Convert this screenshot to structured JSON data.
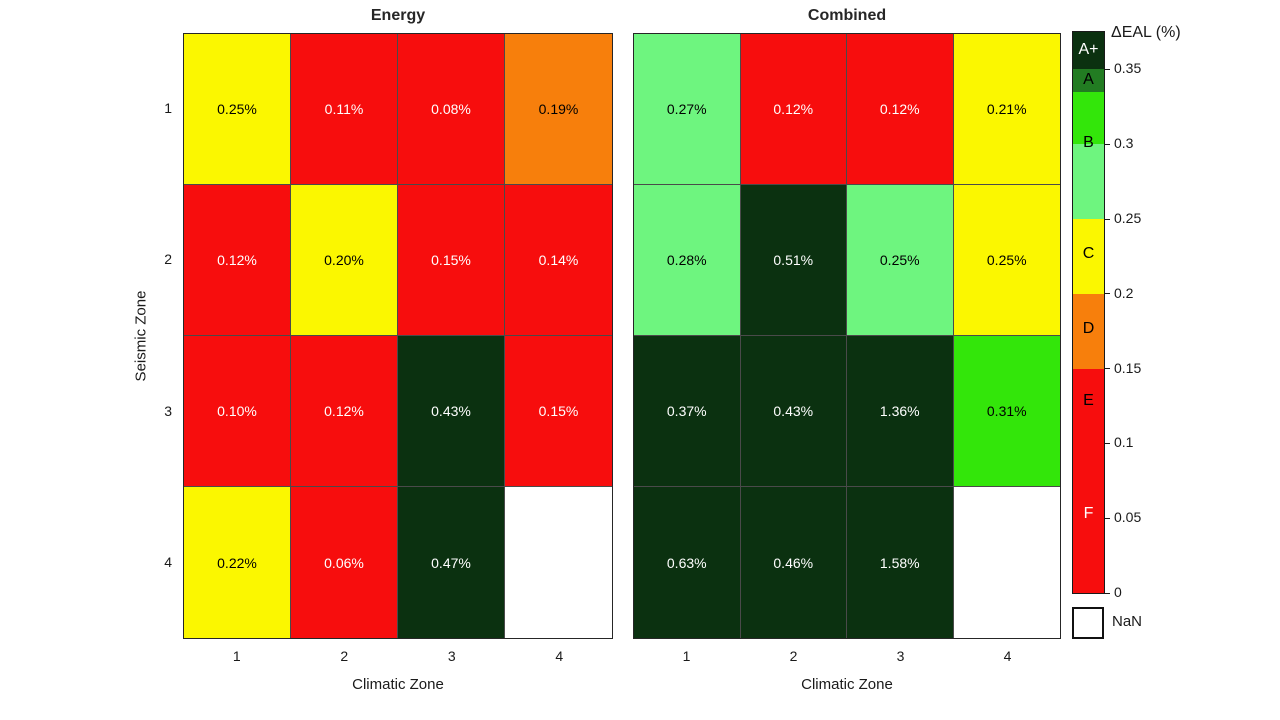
{
  "figure": {
    "background": "#ffffff",
    "ylabel": "Seismic Zone",
    "y_tick_labels": [
      "1",
      "2",
      "3",
      "4"
    ]
  },
  "chart_data": [
    {
      "type": "heatmap",
      "title": "Energy",
      "xlabel": "Climatic Zone",
      "ylabel": "Seismic Zone",
      "x_categories": [
        "1",
        "2",
        "3",
        "4"
      ],
      "y_categories": [
        "1",
        "2",
        "3",
        "4"
      ],
      "value_unit": "% (ΔEAL)",
      "rows": [
        [
          {
            "value": 0.25,
            "label": "0.25%",
            "bg": "#fbf700",
            "fg": "#000000"
          },
          {
            "value": 0.11,
            "label": "0.11%",
            "bg": "#f70d0d",
            "fg": "#ffffff"
          },
          {
            "value": 0.08,
            "label": "0.08%",
            "bg": "#f70d0d",
            "fg": "#ffffff"
          },
          {
            "value": 0.19,
            "label": "0.19%",
            "bg": "#f77f0c",
            "fg": "#000000"
          }
        ],
        [
          {
            "value": 0.12,
            "label": "0.12%",
            "bg": "#f70d0d",
            "fg": "#ffffff"
          },
          {
            "value": 0.2,
            "label": "0.20%",
            "bg": "#fbf700",
            "fg": "#000000"
          },
          {
            "value": 0.15,
            "label": "0.15%",
            "bg": "#f70d0d",
            "fg": "#ffffff"
          },
          {
            "value": 0.14,
            "label": "0.14%",
            "bg": "#f70d0d",
            "fg": "#ffffff"
          }
        ],
        [
          {
            "value": 0.1,
            "label": "0.10%",
            "bg": "#f70d0d",
            "fg": "#ffffff"
          },
          {
            "value": 0.12,
            "label": "0.12%",
            "bg": "#f70d0d",
            "fg": "#ffffff"
          },
          {
            "value": 0.43,
            "label": "0.43%",
            "bg": "#0b3110",
            "fg": "#ffffff"
          },
          {
            "value": 0.15,
            "label": "0.15%",
            "bg": "#f70d0d",
            "fg": "#ffffff"
          }
        ],
        [
          {
            "value": 0.22,
            "label": "0.22%",
            "bg": "#fbf700",
            "fg": "#000000"
          },
          {
            "value": 0.06,
            "label": "0.06%",
            "bg": "#f70d0d",
            "fg": "#ffffff"
          },
          {
            "value": 0.47,
            "label": "0.47%",
            "bg": "#0b3110",
            "fg": "#ffffff"
          },
          {
            "value": null,
            "label": "",
            "bg": "#ffffff",
            "fg": "#000000"
          }
        ]
      ]
    },
    {
      "type": "heatmap",
      "title": "Combined",
      "xlabel": "Climatic Zone",
      "ylabel": "Seismic Zone",
      "x_categories": [
        "1",
        "2",
        "3",
        "4"
      ],
      "y_categories": [
        "1",
        "2",
        "3",
        "4"
      ],
      "value_unit": "% (ΔEAL)",
      "rows": [
        [
          {
            "value": 0.27,
            "label": "0.27%",
            "bg": "#6ef57f",
            "fg": "#000000"
          },
          {
            "value": 0.12,
            "label": "0.12%",
            "bg": "#f70d0d",
            "fg": "#ffffff"
          },
          {
            "value": 0.12,
            "label": "0.12%",
            "bg": "#f70d0d",
            "fg": "#ffffff"
          },
          {
            "value": 0.21,
            "label": "0.21%",
            "bg": "#fbf700",
            "fg": "#000000"
          }
        ],
        [
          {
            "value": 0.28,
            "label": "0.28%",
            "bg": "#6ef57f",
            "fg": "#000000"
          },
          {
            "value": 0.51,
            "label": "0.51%",
            "bg": "#0b3110",
            "fg": "#ffffff"
          },
          {
            "value": 0.25,
            "label": "0.25%",
            "bg": "#6ef57f",
            "fg": "#000000"
          },
          {
            "value": 0.25,
            "label": "0.25%",
            "bg": "#fbf700",
            "fg": "#000000"
          }
        ],
        [
          {
            "value": 0.37,
            "label": "0.37%",
            "bg": "#0b3110",
            "fg": "#ffffff"
          },
          {
            "value": 0.43,
            "label": "0.43%",
            "bg": "#0b3110",
            "fg": "#ffffff"
          },
          {
            "value": 1.36,
            "label": "1.36%",
            "bg": "#0b3110",
            "fg": "#ffffff"
          },
          {
            "value": 0.31,
            "label": "0.31%",
            "bg": "#33e60a",
            "fg": "#000000"
          }
        ],
        [
          {
            "value": 0.63,
            "label": "0.63%",
            "bg": "#0b3110",
            "fg": "#ffffff"
          },
          {
            "value": 0.46,
            "label": "0.46%",
            "bg": "#0b3110",
            "fg": "#ffffff"
          },
          {
            "value": 1.58,
            "label": "1.58%",
            "bg": "#0b3110",
            "fg": "#ffffff"
          },
          {
            "value": null,
            "label": "",
            "bg": "#ffffff",
            "fg": "#000000"
          }
        ]
      ]
    }
  ],
  "colorbar": {
    "title": "ΔEAL (%)",
    "range": [
      0,
      0.375
    ],
    "nan_label": "NaN",
    "nan_color": "#ffffff",
    "ticks": [
      {
        "value": 0.35,
        "label": "0.35"
      },
      {
        "value": 0.3,
        "label": "0.3"
      },
      {
        "value": 0.25,
        "label": "0.25"
      },
      {
        "value": 0.2,
        "label": "0.2"
      },
      {
        "value": 0.15,
        "label": "0.15"
      },
      {
        "value": 0.1,
        "label": "0.1"
      },
      {
        "value": 0.05,
        "label": "0.05"
      },
      {
        "value": 0,
        "label": "0"
      }
    ],
    "segments": [
      {
        "grade": "A+",
        "from": 0.35,
        "to": 0.375,
        "color": "#0b3110",
        "label_color": "#ffffff",
        "label_at": 0.3625
      },
      {
        "grade": "A",
        "from": 0.335,
        "to": 0.35,
        "color": "#227c22",
        "label_color": "#000000",
        "label_at": 0.3425
      },
      {
        "grade": "B",
        "from": 0.3,
        "to": 0.335,
        "color": "#33e60a",
        "label_color": "#000000",
        "label_at": 0.3
      },
      {
        "grade": "",
        "from": 0.25,
        "to": 0.3,
        "color": "#6ef57f",
        "label_color": "#000000",
        "label_at": 0.275
      },
      {
        "grade": "C",
        "from": 0.2,
        "to": 0.25,
        "color": "#fbf700",
        "label_color": "#000000",
        "label_at": 0.226
      },
      {
        "grade": "D",
        "from": 0.15,
        "to": 0.2,
        "color": "#f77f0c",
        "label_color": "#000000",
        "label_at": 0.176
      },
      {
        "grade": "E",
        "from": 0.1,
        "to": 0.15,
        "color": "#f70d0d",
        "label_color": "#000000",
        "label_at": 0.128
      },
      {
        "grade": "F",
        "from": 0.0,
        "to": 0.1,
        "color": "#f70d0d",
        "label_color": "#ffffff",
        "label_at": 0.052
      }
    ]
  }
}
